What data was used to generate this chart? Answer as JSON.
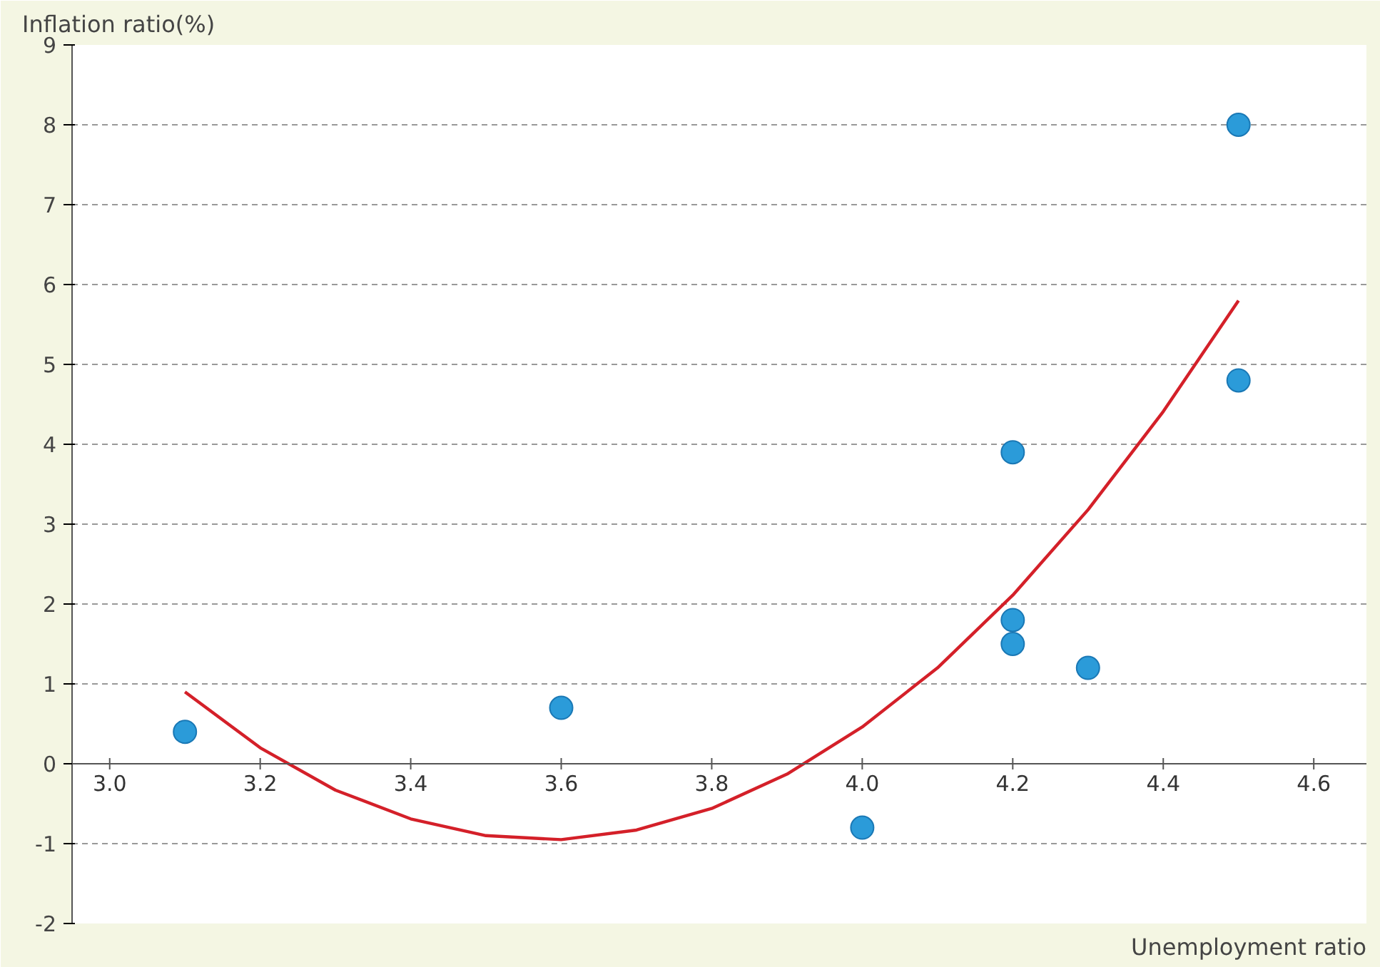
{
  "chart_data": {
    "type": "scatter",
    "xlabel": "Unemployment ratio",
    "ylabel": "Inflation ratio(%)",
    "xlim": [
      2.95,
      4.67
    ],
    "ylim": [
      -2,
      9
    ],
    "xticks": [
      {
        "value": 3.0,
        "label": "3.0"
      },
      {
        "value": 3.2,
        "label": "3.2"
      },
      {
        "value": 3.4,
        "label": "3.4"
      },
      {
        "value": 3.6,
        "label": "3.6"
      },
      {
        "value": 3.8,
        "label": "3.8"
      },
      {
        "value": 4.0,
        "label": "4.0"
      },
      {
        "value": 4.2,
        "label": "4.2"
      },
      {
        "value": 4.4,
        "label": "4.4"
      },
      {
        "value": 4.6,
        "label": "4.6"
      }
    ],
    "yticks": [
      -2,
      -1,
      0,
      1,
      2,
      3,
      4,
      5,
      6,
      7,
      8,
      9
    ],
    "grid": "y",
    "series": [
      {
        "marker": "circle",
        "color": "#2b9bd9",
        "x": [
          3.1,
          3.6,
          4.0,
          4.2,
          4.2,
          4.2,
          4.3,
          4.5,
          4.5
        ],
        "values": [
          0.4,
          0.7,
          -0.8,
          3.9,
          1.8,
          1.5,
          1.2,
          8.0,
          4.8
        ]
      },
      {
        "type": "line",
        "color": "#d42029",
        "x": [
          3.1,
          3.2,
          3.3,
          3.4,
          3.5,
          3.6,
          3.7,
          3.8,
          3.9,
          4.0,
          4.1,
          4.2,
          4.3,
          4.4,
          4.5
        ],
        "values": [
          0.9,
          0.2,
          -0.33,
          -0.69,
          -0.9,
          -0.95,
          -0.83,
          -0.56,
          -0.13,
          0.46,
          1.2,
          2.11,
          3.18,
          4.41,
          5.8
        ]
      }
    ]
  }
}
